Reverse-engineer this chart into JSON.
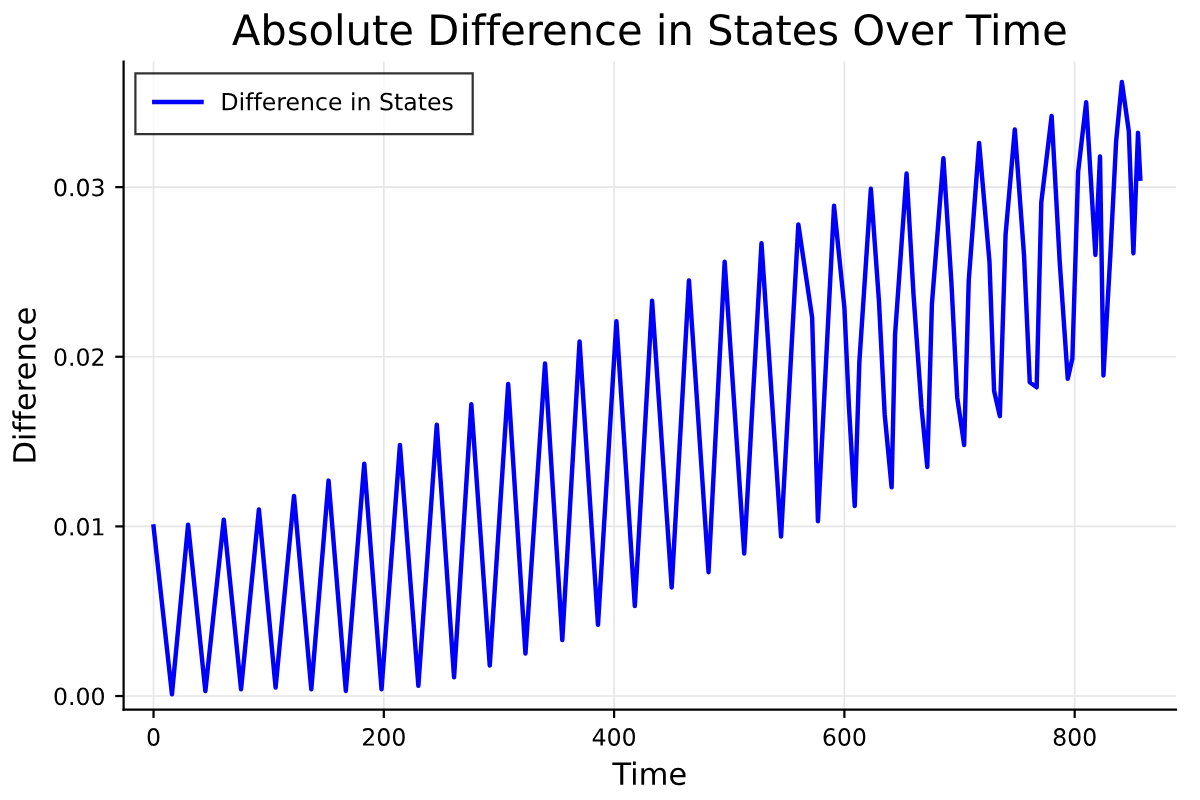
{
  "chart_data": {
    "type": "line",
    "title": "Absolute Difference in States Over Time",
    "xlabel": "Time",
    "ylabel": "Difference",
    "series": [
      {
        "name": "Difference in States",
        "color": "#0000ff",
        "x": [
          0,
          16,
          30,
          45,
          61,
          76,
          91.5,
          106,
          122,
          137,
          152,
          167,
          183,
          198,
          214,
          230,
          246,
          261,
          276,
          292,
          308,
          323,
          340,
          355,
          370,
          386,
          402,
          418,
          433,
          450,
          465,
          482,
          496,
          513,
          528,
          545,
          560,
          572,
          577,
          591,
          600,
          604,
          609,
          613,
          623,
          630,
          635,
          641,
          644,
          654,
          660,
          667,
          672,
          676,
          686,
          693,
          698,
          704,
          708,
          717,
          726,
          730,
          735,
          740,
          748,
          756,
          761,
          767,
          771,
          780,
          787,
          794,
          798,
          803,
          810,
          818,
          822,
          825,
          831,
          836,
          841,
          847,
          851,
          855,
          857
        ],
        "values": [
          0.01,
          0.0001,
          0.0101,
          0.0003,
          0.0104,
          0.0004,
          0.011,
          0.0005,
          0.0118,
          0.0004,
          0.0127,
          0.0003,
          0.0137,
          0.0004,
          0.0148,
          0.0006,
          0.016,
          0.0011,
          0.0172,
          0.0018,
          0.0184,
          0.0025,
          0.0196,
          0.0033,
          0.0209,
          0.0042,
          0.0221,
          0.0053,
          0.0233,
          0.0064,
          0.0245,
          0.0073,
          0.0256,
          0.0084,
          0.0267,
          0.0094,
          0.0278,
          0.0223,
          0.0103,
          0.0289,
          0.0229,
          0.017,
          0.0112,
          0.0197,
          0.0299,
          0.0233,
          0.0166,
          0.0123,
          0.0213,
          0.0308,
          0.0237,
          0.017,
          0.0135,
          0.0231,
          0.0317,
          0.0243,
          0.0176,
          0.0148,
          0.0245,
          0.0326,
          0.0256,
          0.018,
          0.0165,
          0.0272,
          0.0334,
          0.026,
          0.0185,
          0.0182,
          0.0291,
          0.0342,
          0.0256,
          0.0187,
          0.0199,
          0.0309,
          0.035,
          0.026,
          0.0318,
          0.0189,
          0.026,
          0.0327,
          0.0362,
          0.0333,
          0.0261,
          0.0332,
          0.0305
        ]
      }
    ],
    "xlim": [
      -26,
      888
    ],
    "ylim": [
      -0.0008,
      0.0374
    ],
    "xticks": [
      0,
      200,
      400,
      600,
      800
    ],
    "yticks": [
      {
        "value": 0,
        "label": "0.00"
      },
      {
        "value": 0.01,
        "label": "0.01"
      },
      {
        "value": 0.02,
        "label": "0.02"
      },
      {
        "value": 0.03,
        "label": "0.03"
      }
    ],
    "grid": true,
    "legend": "top left",
    "marker": "none",
    "line_style": "solid"
  }
}
